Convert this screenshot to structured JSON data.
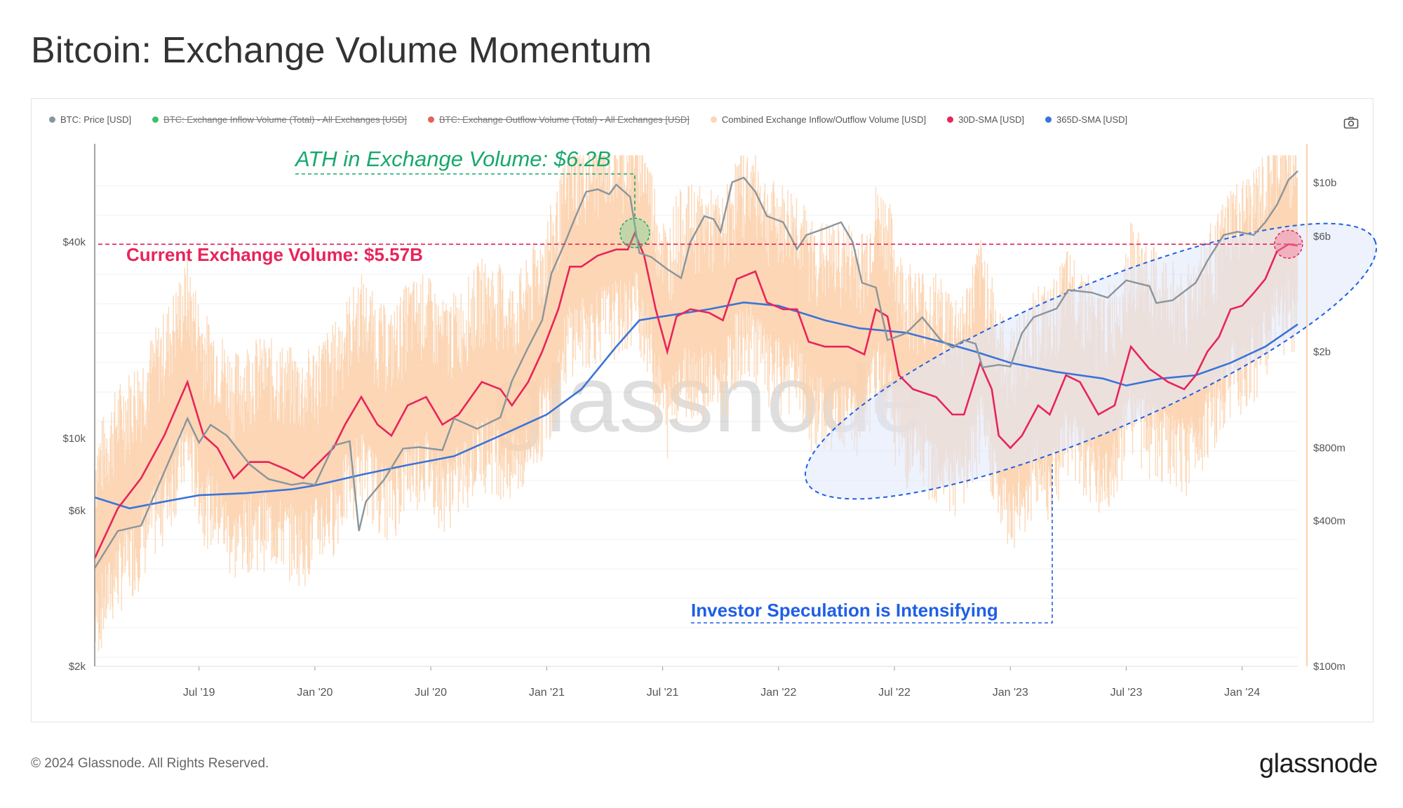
{
  "page": {
    "title": "Bitcoin: Exchange Volume Momentum",
    "copyright": "© 2024 Glassnode. All Rights Reserved.",
    "logo": "glassnode",
    "watermark": "glassnode"
  },
  "legend": [
    {
      "label": "BTC: Price [USD]",
      "color": "#8a959c",
      "disabled": false
    },
    {
      "label": "BTC: Exchange Inflow Volume (Total) - All Exchanges [USD]",
      "color": "#3dbf6e",
      "disabled": true
    },
    {
      "label": "BTC: Exchange Outflow Volume (Total) - All Exchanges [USD]",
      "color": "#e56157",
      "disabled": true
    },
    {
      "label": "Combined Exchange Inflow/Outflow Volume [USD]",
      "color": "#fbd7b8",
      "disabled": false
    },
    {
      "label": "30D-SMA [USD]",
      "color": "#e8245a",
      "disabled": false
    },
    {
      "label": "365D-SMA [USD]",
      "color": "#3a74d9",
      "disabled": false
    }
  ],
  "colors": {
    "price": "#8a959c",
    "combined": "#fbd2ae",
    "sma30": "#e8245a",
    "sma365": "#3a74d9",
    "ath": "#18a86b",
    "current": "#e8245a",
    "speculation": "#1f5fe6"
  },
  "annotations": {
    "ath": "ATH in Exchange Volume: $6.2B",
    "current": "Current Exchange Volume: $5.57B",
    "speculation": "Investor Speculation is Intensifying"
  },
  "chart_data": {
    "type": "line",
    "title": "Bitcoin: Exchange Volume Momentum",
    "x_ticks": [
      "Jul '19",
      "Jan '20",
      "Jul '20",
      "Jan '21",
      "Jul '21",
      "Jan '22",
      "Jul '22",
      "Jan '23",
      "Jul '23",
      "Jan '24"
    ],
    "x_range": [
      2019.05,
      2024.24
    ],
    "y_left": {
      "scale": "log",
      "range": [
        2000,
        80000
      ],
      "ticks": [
        "$2k",
        "$6k",
        "$10k",
        "$40k"
      ],
      "tick_values": [
        2000,
        6000,
        10000,
        40000
      ]
    },
    "y_right": {
      "scale": "log",
      "range": [
        100000000,
        14500000000
      ],
      "ticks": [
        "$100m",
        "$400m",
        "$800m",
        "$2b",
        "$6b",
        "$10b"
      ],
      "tick_values": [
        100000000,
        400000000,
        800000000,
        2000000000,
        6000000000,
        10000000000
      ]
    },
    "series": [
      {
        "name": "BTC: Price [USD]",
        "axis": "left",
        "points": [
          [
            2019.05,
            4000
          ],
          [
            2019.15,
            5200
          ],
          [
            2019.25,
            5400
          ],
          [
            2019.37,
            8500
          ],
          [
            2019.45,
            11500
          ],
          [
            2019.5,
            9700
          ],
          [
            2019.55,
            11000
          ],
          [
            2019.62,
            10200
          ],
          [
            2019.72,
            8300
          ],
          [
            2019.8,
            7500
          ],
          [
            2019.9,
            7200
          ],
          [
            2019.95,
            7300
          ],
          [
            2020.0,
            7200
          ],
          [
            2020.08,
            9500
          ],
          [
            2020.15,
            9800
          ],
          [
            2020.19,
            5200
          ],
          [
            2020.22,
            6400
          ],
          [
            2020.3,
            7500
          ],
          [
            2020.38,
            9300
          ],
          [
            2020.45,
            9400
          ],
          [
            2020.55,
            9200
          ],
          [
            2020.6,
            11500
          ],
          [
            2020.7,
            10700
          ],
          [
            2020.8,
            11600
          ],
          [
            2020.85,
            15000
          ],
          [
            2020.92,
            19000
          ],
          [
            2020.98,
            23000
          ],
          [
            2021.02,
            32000
          ],
          [
            2021.08,
            40000
          ],
          [
            2021.12,
            47000
          ],
          [
            2021.17,
            57000
          ],
          [
            2021.22,
            58000
          ],
          [
            2021.27,
            56000
          ],
          [
            2021.3,
            60000
          ],
          [
            2021.36,
            55000
          ],
          [
            2021.4,
            37000
          ],
          [
            2021.45,
            36000
          ],
          [
            2021.52,
            33000
          ],
          [
            2021.58,
            31000
          ],
          [
            2021.62,
            40000
          ],
          [
            2021.68,
            48000
          ],
          [
            2021.72,
            47000
          ],
          [
            2021.75,
            43000
          ],
          [
            2021.8,
            61000
          ],
          [
            2021.85,
            63000
          ],
          [
            2021.9,
            57000
          ],
          [
            2021.95,
            48000
          ],
          [
            2022.02,
            46000
          ],
          [
            2022.08,
            38000
          ],
          [
            2022.12,
            42000
          ],
          [
            2022.2,
            44000
          ],
          [
            2022.27,
            46000
          ],
          [
            2022.32,
            40000
          ],
          [
            2022.36,
            30000
          ],
          [
            2022.42,
            29000
          ],
          [
            2022.47,
            20000
          ],
          [
            2022.55,
            21000
          ],
          [
            2022.62,
            23500
          ],
          [
            2022.7,
            20000
          ],
          [
            2022.75,
            19000
          ],
          [
            2022.8,
            20000
          ],
          [
            2022.85,
            19500
          ],
          [
            2022.88,
            16500
          ],
          [
            2022.95,
            16800
          ],
          [
            2023.0,
            16600
          ],
          [
            2023.05,
            21000
          ],
          [
            2023.1,
            23500
          ],
          [
            2023.2,
            25000
          ],
          [
            2023.25,
            28500
          ],
          [
            2023.35,
            28000
          ],
          [
            2023.42,
            27000
          ],
          [
            2023.5,
            30500
          ],
          [
            2023.6,
            29300
          ],
          [
            2023.63,
            26000
          ],
          [
            2023.7,
            26500
          ],
          [
            2023.8,
            30000
          ],
          [
            2023.85,
            35000
          ],
          [
            2023.92,
            42000
          ],
          [
            2023.98,
            43000
          ],
          [
            2024.05,
            42000
          ],
          [
            2024.1,
            46000
          ],
          [
            2024.15,
            52000
          ],
          [
            2024.2,
            62000
          ],
          [
            2024.24,
            66000
          ]
        ]
      },
      {
        "name": "30D-SMA [USD]",
        "axis": "right",
        "points": [
          [
            2019.05,
            280000000
          ],
          [
            2019.15,
            450000000
          ],
          [
            2019.25,
            600000000
          ],
          [
            2019.35,
            900000000
          ],
          [
            2019.45,
            1500000000
          ],
          [
            2019.52,
            900000000
          ],
          [
            2019.58,
            800000000
          ],
          [
            2019.65,
            600000000
          ],
          [
            2019.72,
            700000000
          ],
          [
            2019.8,
            700000000
          ],
          [
            2019.88,
            650000000
          ],
          [
            2019.95,
            600000000
          ],
          [
            2020.02,
            700000000
          ],
          [
            2020.08,
            800000000
          ],
          [
            2020.13,
            1000000000
          ],
          [
            2020.2,
            1300000000
          ],
          [
            2020.27,
            1000000000
          ],
          [
            2020.33,
            900000000
          ],
          [
            2020.4,
            1200000000
          ],
          [
            2020.48,
            1300000000
          ],
          [
            2020.55,
            1000000000
          ],
          [
            2020.62,
            1100000000
          ],
          [
            2020.72,
            1500000000
          ],
          [
            2020.8,
            1400000000
          ],
          [
            2020.85,
            1200000000
          ],
          [
            2020.92,
            1500000000
          ],
          [
            2020.98,
            2000000000
          ],
          [
            2021.05,
            3000000000
          ],
          [
            2021.1,
            4500000000
          ],
          [
            2021.15,
            4500000000
          ],
          [
            2021.22,
            5000000000
          ],
          [
            2021.3,
            5300000000
          ],
          [
            2021.35,
            5300000000
          ],
          [
            2021.38,
            6200000000
          ],
          [
            2021.42,
            5000000000
          ],
          [
            2021.47,
            3000000000
          ],
          [
            2021.52,
            2000000000
          ],
          [
            2021.56,
            2800000000
          ],
          [
            2021.62,
            3000000000
          ],
          [
            2021.7,
            2900000000
          ],
          [
            2021.76,
            2700000000
          ],
          [
            2021.82,
            4000000000
          ],
          [
            2021.9,
            4300000000
          ],
          [
            2021.95,
            3200000000
          ],
          [
            2022.02,
            3000000000
          ],
          [
            2022.08,
            3000000000
          ],
          [
            2022.13,
            2200000000
          ],
          [
            2022.2,
            2100000000
          ],
          [
            2022.3,
            2100000000
          ],
          [
            2022.37,
            1950000000
          ],
          [
            2022.42,
            3000000000
          ],
          [
            2022.47,
            2800000000
          ],
          [
            2022.52,
            1600000000
          ],
          [
            2022.58,
            1400000000
          ],
          [
            2022.68,
            1300000000
          ],
          [
            2022.75,
            1100000000
          ],
          [
            2022.8,
            1100000000
          ],
          [
            2022.87,
            1800000000
          ],
          [
            2022.92,
            1400000000
          ],
          [
            2022.95,
            900000000
          ],
          [
            2023.0,
            800000000
          ],
          [
            2023.05,
            900000000
          ],
          [
            2023.12,
            1200000000
          ],
          [
            2023.17,
            1100000000
          ],
          [
            2023.24,
            1600000000
          ],
          [
            2023.3,
            1500000000
          ],
          [
            2023.38,
            1100000000
          ],
          [
            2023.45,
            1200000000
          ],
          [
            2023.52,
            2100000000
          ],
          [
            2023.6,
            1700000000
          ],
          [
            2023.68,
            1500000000
          ],
          [
            2023.75,
            1400000000
          ],
          [
            2023.8,
            1600000000
          ],
          [
            2023.85,
            2000000000
          ],
          [
            2023.9,
            2300000000
          ],
          [
            2023.95,
            3000000000
          ],
          [
            2024.0,
            3100000000
          ],
          [
            2024.05,
            3500000000
          ],
          [
            2024.1,
            4000000000
          ],
          [
            2024.15,
            5200000000
          ],
          [
            2024.2,
            5570000000
          ],
          [
            2024.24,
            5500000000
          ]
        ]
      },
      {
        "name": "365D-SMA [USD]",
        "axis": "right",
        "points": [
          [
            2019.05,
            500000000
          ],
          [
            2019.2,
            450000000
          ],
          [
            2019.35,
            480000000
          ],
          [
            2019.5,
            510000000
          ],
          [
            2019.7,
            520000000
          ],
          [
            2019.9,
            540000000
          ],
          [
            2020.0,
            560000000
          ],
          [
            2020.2,
            620000000
          ],
          [
            2020.4,
            680000000
          ],
          [
            2020.6,
            740000000
          ],
          [
            2020.8,
            900000000
          ],
          [
            2021.0,
            1100000000
          ],
          [
            2021.15,
            1400000000
          ],
          [
            2021.3,
            2100000000
          ],
          [
            2021.4,
            2700000000
          ],
          [
            2021.5,
            2800000000
          ],
          [
            2021.7,
            3000000000
          ],
          [
            2021.85,
            3200000000
          ],
          [
            2022.0,
            3100000000
          ],
          [
            2022.2,
            2700000000
          ],
          [
            2022.35,
            2500000000
          ],
          [
            2022.55,
            2400000000
          ],
          [
            2022.7,
            2200000000
          ],
          [
            2022.85,
            2000000000
          ],
          [
            2023.0,
            1800000000
          ],
          [
            2023.2,
            1650000000
          ],
          [
            2023.4,
            1550000000
          ],
          [
            2023.5,
            1450000000
          ],
          [
            2023.65,
            1550000000
          ],
          [
            2023.8,
            1600000000
          ],
          [
            2023.95,
            1800000000
          ],
          [
            2024.1,
            2100000000
          ],
          [
            2024.24,
            2600000000
          ]
        ]
      }
    ],
    "notes": "Combined Exchange Inflow/Outflow Volume shown as dense daily bars fluctuating around the 30D-SMA on the right axis."
  }
}
